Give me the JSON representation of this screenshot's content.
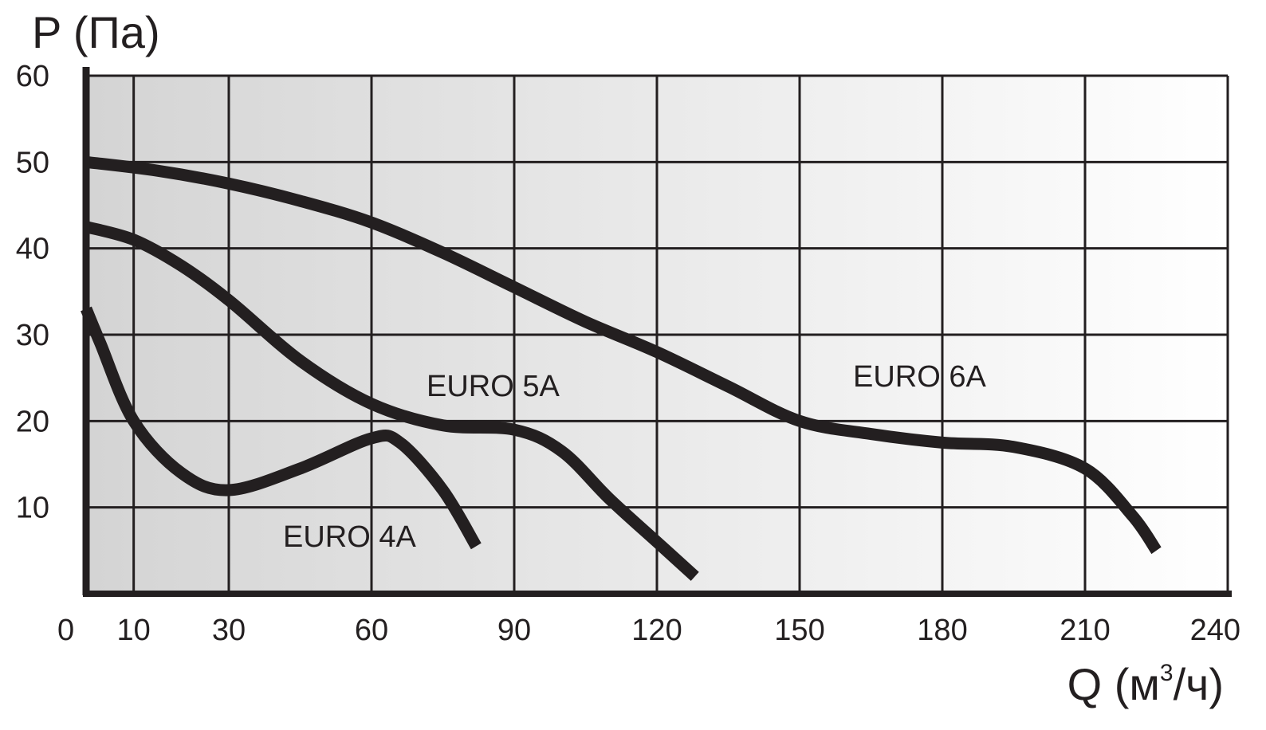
{
  "chart_data": {
    "type": "line",
    "ylabel": "P (Па)",
    "xlabel_main": "Q (м",
    "xlabel_sup": "3",
    "xlabel_tail": "/ч)",
    "xlim": [
      0,
      240
    ],
    "ylim": [
      0,
      60
    ],
    "x_ticks": [
      "0",
      "10",
      "30",
      "60",
      "90",
      "120",
      "150",
      "180",
      "210",
      "240"
    ],
    "y_ticks": [
      "10",
      "20",
      "30",
      "40",
      "50",
      "60"
    ],
    "grid": true,
    "series": [
      {
        "name": "EURO 4A",
        "points": [
          [
            0,
            33
          ],
          [
            3,
            29
          ],
          [
            10,
            20
          ],
          [
            20,
            14
          ],
          [
            30,
            12
          ],
          [
            45,
            14.5
          ],
          [
            60,
            18
          ],
          [
            66,
            17.5
          ],
          [
            75,
            12
          ],
          [
            82,
            5.5
          ]
        ]
      },
      {
        "name": "EURO 5A",
        "points": [
          [
            0,
            42.5
          ],
          [
            10,
            41
          ],
          [
            20,
            38
          ],
          [
            30,
            34
          ],
          [
            45,
            27
          ],
          [
            60,
            22
          ],
          [
            75,
            19.5
          ],
          [
            90,
            19
          ],
          [
            100,
            16.5
          ],
          [
            110,
            11
          ],
          [
            120,
            6
          ],
          [
            128,
            2
          ]
        ]
      },
      {
        "name": "EURO 6A",
        "points": [
          [
            0,
            50
          ],
          [
            15,
            49
          ],
          [
            30,
            47.5
          ],
          [
            45,
            45.5
          ],
          [
            60,
            43
          ],
          [
            75,
            39.5
          ],
          [
            90,
            35.5
          ],
          [
            105,
            31.5
          ],
          [
            120,
            28
          ],
          [
            135,
            24
          ],
          [
            150,
            20
          ],
          [
            165,
            18.5
          ],
          [
            180,
            17.5
          ],
          [
            195,
            17
          ],
          [
            210,
            14.5
          ],
          [
            220,
            9
          ],
          [
            225,
            5
          ]
        ]
      }
    ],
    "colors": {
      "line": "#231f20",
      "grid": "#231f20",
      "plot_bg_left": "#d4d4d4",
      "plot_bg_right": "#ffffff"
    }
  }
}
